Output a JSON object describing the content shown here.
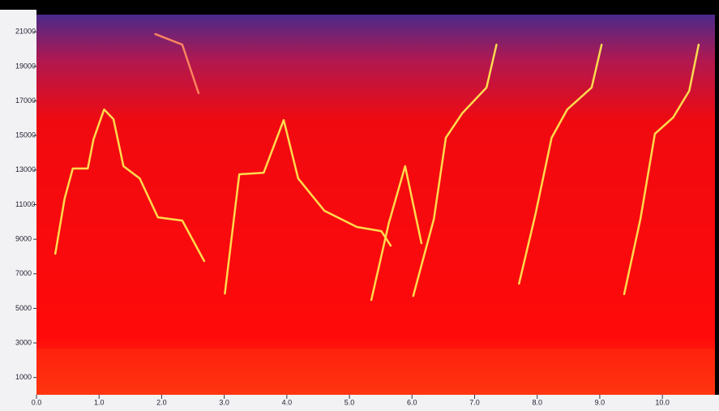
{
  "chart_data": {
    "type": "spectrogram",
    "xlim": [
      0,
      10.84
    ],
    "ylim": [
      0,
      22000
    ],
    "xticks": [
      {
        "value": 0,
        "label": "0.0"
      },
      {
        "value": 1,
        "label": "1.0"
      },
      {
        "value": 2,
        "label": "2.0"
      },
      {
        "value": 3,
        "label": "3.0"
      },
      {
        "value": 4,
        "label": "4.0"
      },
      {
        "value": 5,
        "label": "5.0"
      },
      {
        "value": 6,
        "label": "6.0"
      },
      {
        "value": 7,
        "label": "7.0"
      },
      {
        "value": 8,
        "label": "8.0"
      },
      {
        "value": 9,
        "label": "9.0"
      },
      {
        "value": 10,
        "label": "10.0"
      }
    ],
    "yticks": [
      1000,
      3000,
      5000,
      7000,
      9000,
      11000,
      13000,
      15000,
      17000,
      19000,
      21000
    ],
    "series": [
      {
        "color": "#ffe650",
        "x": [
          0.3,
          0.45,
          0.58,
          0.82,
          0.91,
          1.08,
          1.23,
          1.39,
          1.65,
          1.94,
          2.33,
          2.68
        ],
        "values": [
          8160,
          11350,
          13090,
          13090,
          14770,
          16510,
          15950,
          13230,
          12520,
          10270,
          10080,
          7740
        ]
      },
      {
        "color": "#ffe650",
        "x": [
          3.01,
          3.24,
          3.63,
          3.95,
          4.18,
          4.6,
          5.12,
          5.51,
          5.66
        ],
        "values": [
          5860,
          12760,
          12850,
          15900,
          12520,
          10650,
          9710,
          9470,
          8630
        ]
      },
      {
        "color": "#ffe650",
        "x": [
          5.35,
          5.63,
          5.89,
          6.15
        ],
        "values": [
          5490,
          9940,
          13230,
          8770
        ]
      },
      {
        "color": "#ffe650",
        "x": [
          6.02,
          6.35,
          6.54,
          6.8,
          7.19,
          7.35
        ],
        "values": [
          5720,
          10180,
          14870,
          16280,
          17780,
          20260
        ]
      },
      {
        "color": "#ffe650",
        "x": [
          7.71,
          7.97,
          8.23,
          8.48,
          8.87,
          9.03
        ],
        "values": [
          6430,
          10410,
          14870,
          16510,
          17780,
          20260
        ]
      },
      {
        "color": "#ffe650",
        "x": [
          9.39,
          9.65,
          9.88,
          10.17,
          10.43,
          10.58
        ],
        "values": [
          5820,
          10180,
          15100,
          16040,
          17590,
          20260
        ]
      },
      {
        "color": "#ff8a60",
        "x": [
          1.9,
          2.33,
          2.59
        ],
        "values": [
          20870,
          20260,
          17450
        ]
      }
    ]
  }
}
